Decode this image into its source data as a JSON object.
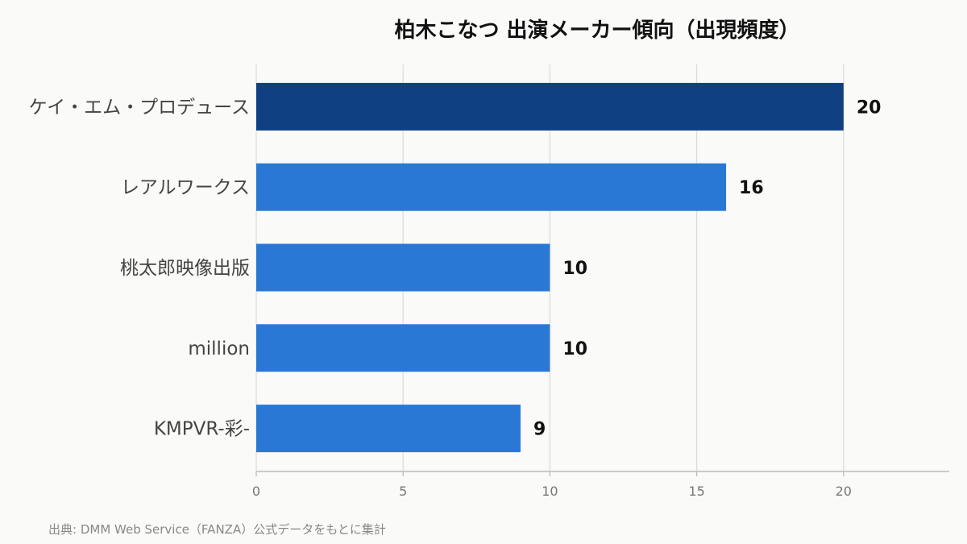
{
  "chart_data": {
    "type": "bar",
    "orientation": "horizontal",
    "title": "柏木こなつ 出演メーカー傾向（出現頻度）",
    "categories": [
      "ケイ・エム・プロデュース",
      "レアルワークス",
      "桃太郎映像出版",
      "million",
      "KMPVR-彩-"
    ],
    "values": [
      20,
      16,
      10,
      10,
      9
    ],
    "data_labels": [
      "20",
      "16",
      "10",
      "10",
      "9"
    ],
    "xlim": [
      0,
      23.6
    ],
    "xticks": [
      0,
      5,
      10,
      15,
      20
    ],
    "xtick_labels": [
      "0",
      "5",
      "10",
      "15",
      "20"
    ],
    "grid": true,
    "colors": {
      "highlight": "#0f4182",
      "bar": "#2a78d6",
      "grid": "#dddddd",
      "axis": "#bbbbbb"
    }
  },
  "source": "出典: DMM Web Service（FANZA）公式データをもとに集計"
}
